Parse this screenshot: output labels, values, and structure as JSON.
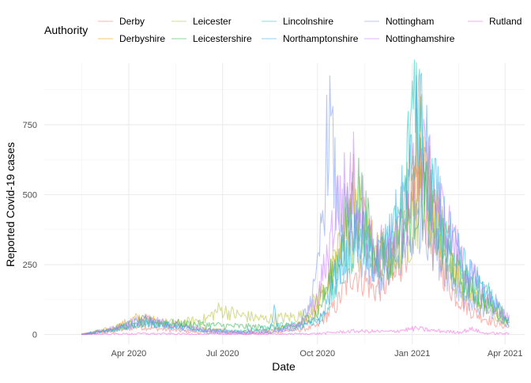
{
  "chart_data": {
    "type": "line",
    "xlabel": "Date",
    "ylabel": "Reported Covid-19 cases",
    "x_range": [
      "2020-01-10",
      "2021-04-20"
    ],
    "ylim": [
      -35,
      970
    ],
    "x_ticks": [
      {
        "date": "2020-04-01",
        "label": "Apr 2020"
      },
      {
        "date": "2020-07-01",
        "label": "Jul 2020"
      },
      {
        "date": "2020-10-01",
        "label": "Oct 2020"
      },
      {
        "date": "2021-01-01",
        "label": "Jan 2021"
      },
      {
        "date": "2021-04-01",
        "label": "Apr 2021"
      }
    ],
    "y_ticks": [
      0,
      250,
      500,
      750
    ],
    "grid": true,
    "legend": {
      "title": "Authority",
      "position": "top"
    },
    "series": [
      {
        "name": "Derby",
        "color": "#F8766D",
        "points": [
          [
            "2020-02-15",
            0
          ],
          [
            "2020-03-15",
            10
          ],
          [
            "2020-04-10",
            28
          ],
          [
            "2020-05-15",
            15
          ],
          [
            "2020-06-15",
            6
          ],
          [
            "2020-07-15",
            4
          ],
          [
            "2020-08-15",
            6
          ],
          [
            "2020-09-15",
            18
          ],
          [
            "2020-10-01",
            30
          ],
          [
            "2020-10-20",
            110
          ],
          [
            "2020-11-05",
            230
          ],
          [
            "2020-11-25",
            160
          ],
          [
            "2020-12-15",
            200
          ],
          [
            "2021-01-01",
            400
          ],
          [
            "2021-01-08",
            600
          ],
          [
            "2021-01-20",
            330
          ],
          [
            "2021-02-10",
            150
          ],
          [
            "2021-03-01",
            80
          ],
          [
            "2021-03-20",
            45
          ],
          [
            "2021-04-05",
            25
          ]
        ]
      },
      {
        "name": "Derbyshire",
        "color": "#E69F00",
        "points": [
          [
            "2020-02-15",
            0
          ],
          [
            "2020-03-15",
            20
          ],
          [
            "2020-04-10",
            60
          ],
          [
            "2020-05-10",
            40
          ],
          [
            "2020-06-15",
            18
          ],
          [
            "2020-07-15",
            10
          ],
          [
            "2020-08-15",
            12
          ],
          [
            "2020-09-15",
            35
          ],
          [
            "2020-10-01",
            90
          ],
          [
            "2020-10-20",
            260
          ],
          [
            "2020-11-05",
            500
          ],
          [
            "2020-11-20",
            330
          ],
          [
            "2020-12-10",
            300
          ],
          [
            "2021-01-01",
            550
          ],
          [
            "2021-01-08",
            700
          ],
          [
            "2021-01-25",
            420
          ],
          [
            "2021-02-15",
            230
          ],
          [
            "2021-03-05",
            140
          ],
          [
            "2021-03-25",
            90
          ],
          [
            "2021-04-05",
            40
          ]
        ]
      },
      {
        "name": "Leicester",
        "color": "#B5C032",
        "points": [
          [
            "2020-02-15",
            0
          ],
          [
            "2020-03-15",
            15
          ],
          [
            "2020-04-15",
            45
          ],
          [
            "2020-05-20",
            40
          ],
          [
            "2020-06-15",
            55
          ],
          [
            "2020-06-28",
            90
          ],
          [
            "2020-07-15",
            70
          ],
          [
            "2020-08-10",
            55
          ],
          [
            "2020-09-01",
            60
          ],
          [
            "2020-09-20",
            70
          ],
          [
            "2020-10-10",
            180
          ],
          [
            "2020-10-30",
            330
          ],
          [
            "2020-11-15",
            300
          ],
          [
            "2020-12-10",
            260
          ],
          [
            "2021-01-01",
            380
          ],
          [
            "2021-01-10",
            500
          ],
          [
            "2021-01-30",
            300
          ],
          [
            "2021-02-20",
            170
          ],
          [
            "2021-03-10",
            110
          ],
          [
            "2021-04-05",
            40
          ]
        ]
      },
      {
        "name": "Leicestershire",
        "color": "#2DB54B",
        "points": [
          [
            "2020-02-15",
            0
          ],
          [
            "2020-03-15",
            20
          ],
          [
            "2020-04-15",
            50
          ],
          [
            "2020-05-15",
            40
          ],
          [
            "2020-06-15",
            35
          ],
          [
            "2020-07-10",
            30
          ],
          [
            "2020-08-15",
            25
          ],
          [
            "2020-09-10",
            30
          ],
          [
            "2020-10-01",
            80
          ],
          [
            "2020-10-20",
            260
          ],
          [
            "2020-11-08",
            540
          ],
          [
            "2020-11-25",
            280
          ],
          [
            "2020-12-10",
            260
          ],
          [
            "2021-01-01",
            450
          ],
          [
            "2021-01-10",
            550
          ],
          [
            "2021-01-30",
            320
          ],
          [
            "2021-02-20",
            180
          ],
          [
            "2021-03-10",
            120
          ],
          [
            "2021-04-05",
            45
          ]
        ]
      },
      {
        "name": "Lincolnshire",
        "color": "#1DC7B8",
        "points": [
          [
            "2020-02-15",
            0
          ],
          [
            "2020-03-15",
            15
          ],
          [
            "2020-04-15",
            40
          ],
          [
            "2020-05-15",
            35
          ],
          [
            "2020-06-15",
            15
          ],
          [
            "2020-07-15",
            10
          ],
          [
            "2020-08-05",
            20
          ],
          [
            "2020-08-20",
            30
          ],
          [
            "2020-09-15",
            35
          ],
          [
            "2020-10-05",
            60
          ],
          [
            "2020-10-25",
            220
          ],
          [
            "2020-11-10",
            380
          ],
          [
            "2020-11-25",
            280
          ],
          [
            "2020-12-10",
            300
          ],
          [
            "2020-12-25",
            500
          ],
          [
            "2021-01-02",
            880
          ],
          [
            "2021-01-04",
            950
          ],
          [
            "2021-01-15",
            560
          ],
          [
            "2021-02-05",
            300
          ],
          [
            "2021-02-25",
            180
          ],
          [
            "2021-03-20",
            130
          ],
          [
            "2021-04-05",
            45
          ]
        ]
      },
      {
        "name": "Northamptonshire",
        "color": "#35A9E8",
        "points": [
          [
            "2020-02-15",
            0
          ],
          [
            "2020-03-15",
            15
          ],
          [
            "2020-04-15",
            45
          ],
          [
            "2020-05-15",
            30
          ],
          [
            "2020-06-15",
            15
          ],
          [
            "2020-07-15",
            10
          ],
          [
            "2020-08-15",
            15
          ],
          [
            "2020-08-20",
            95
          ],
          [
            "2020-08-24",
            15
          ],
          [
            "2020-09-15",
            25
          ],
          [
            "2020-10-05",
            60
          ],
          [
            "2020-10-25",
            280
          ],
          [
            "2020-11-10",
            380
          ],
          [
            "2020-11-25",
            260
          ],
          [
            "2020-12-10",
            330
          ],
          [
            "2020-12-28",
            520
          ],
          [
            "2021-01-08",
            780
          ],
          [
            "2021-01-20",
            520
          ],
          [
            "2021-02-10",
            300
          ],
          [
            "2021-03-01",
            200
          ],
          [
            "2021-03-25",
            100
          ],
          [
            "2021-04-05",
            50
          ]
        ]
      },
      {
        "name": "Nottingham",
        "color": "#7E9AEE",
        "points": [
          [
            "2020-02-15",
            0
          ],
          [
            "2020-03-15",
            15
          ],
          [
            "2020-04-15",
            40
          ],
          [
            "2020-05-15",
            25
          ],
          [
            "2020-06-15",
            10
          ],
          [
            "2020-07-15",
            5
          ],
          [
            "2020-08-15",
            6
          ],
          [
            "2020-09-15",
            35
          ],
          [
            "2020-09-30",
            180
          ],
          [
            "2020-10-08",
            520
          ],
          [
            "2020-10-12",
            790
          ],
          [
            "2020-10-20",
            460
          ],
          [
            "2020-11-05",
            340
          ],
          [
            "2020-11-25",
            200
          ],
          [
            "2020-12-15",
            230
          ],
          [
            "2021-01-01",
            360
          ],
          [
            "2021-01-10",
            440
          ],
          [
            "2021-01-30",
            260
          ],
          [
            "2021-02-20",
            140
          ],
          [
            "2021-03-10",
            90
          ],
          [
            "2021-04-05",
            30
          ]
        ]
      },
      {
        "name": "Nottinghamshire",
        "color": "#C77CFF",
        "points": [
          [
            "2020-02-15",
            0
          ],
          [
            "2020-03-15",
            20
          ],
          [
            "2020-04-15",
            55
          ],
          [
            "2020-05-15",
            35
          ],
          [
            "2020-06-15",
            15
          ],
          [
            "2020-07-15",
            8
          ],
          [
            "2020-08-15",
            10
          ],
          [
            "2020-09-15",
            35
          ],
          [
            "2020-10-01",
            120
          ],
          [
            "2020-10-20",
            460
          ],
          [
            "2020-11-05",
            560
          ],
          [
            "2020-11-25",
            300
          ],
          [
            "2020-12-15",
            300
          ],
          [
            "2021-01-01",
            520
          ],
          [
            "2021-01-10",
            620
          ],
          [
            "2021-01-30",
            420
          ],
          [
            "2021-02-20",
            240
          ],
          [
            "2021-03-10",
            150
          ],
          [
            "2021-04-05",
            55
          ]
        ]
      },
      {
        "name": "Rutland",
        "color": "#F564E3",
        "points": [
          [
            "2020-02-15",
            0
          ],
          [
            "2020-04-15",
            3
          ],
          [
            "2020-06-15",
            1
          ],
          [
            "2020-08-15",
            1
          ],
          [
            "2020-10-01",
            3
          ],
          [
            "2020-11-05",
            12
          ],
          [
            "2020-12-10",
            10
          ],
          [
            "2021-01-05",
            22
          ],
          [
            "2021-01-20",
            14
          ],
          [
            "2021-02-15",
            8
          ],
          [
            "2021-03-01",
            20
          ],
          [
            "2021-03-10",
            5
          ],
          [
            "2021-04-05",
            3
          ]
        ]
      }
    ]
  }
}
